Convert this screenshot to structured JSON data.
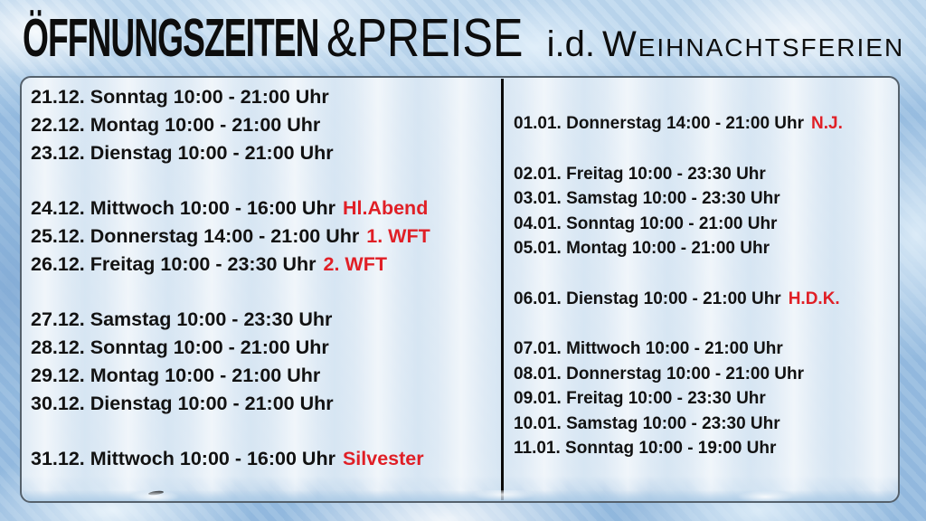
{
  "title": {
    "main_bold": "ÖFFNUNGSZEITEN",
    "main_light": "&PREISE",
    "infix": "i.d.",
    "suffix": "Weihnachtsferien"
  },
  "colors": {
    "highlight_red": "#e01f26",
    "text_black": "#121212"
  },
  "schedule": {
    "december": [
      {
        "text": "21.12. Sonntag 10:00 - 21:00 Uhr",
        "note": ""
      },
      {
        "text": "22.12. Montag 10:00 - 21:00 Uhr",
        "note": ""
      },
      {
        "text": "23.12. Dienstag 10:00 - 21:00 Uhr",
        "note": ""
      },
      {
        "text": "24.12. Mittwoch 10:00 - 16:00 Uhr",
        "note": "Hl.Abend"
      },
      {
        "text": "25.12. Donnerstag 14:00 - 21:00 Uhr",
        "note": "1. WFT"
      },
      {
        "text": "26.12. Freitag 10:00 - 23:30 Uhr",
        "note": "2. WFT"
      },
      {
        "text": "27.12. Samstag 10:00 - 23:30 Uhr",
        "note": ""
      },
      {
        "text": "28.12. Sonntag 10:00 - 21:00 Uhr",
        "note": ""
      },
      {
        "text": "29.12. Montag 10:00 - 21:00 Uhr",
        "note": ""
      },
      {
        "text": "30.12. Dienstag 10:00 - 21:00 Uhr",
        "note": ""
      },
      {
        "text": "31.12. Mittwoch 10:00 - 16:00 Uhr",
        "note": "Silvester"
      }
    ],
    "january": [
      {
        "text": "01.01. Donnerstag 14:00 - 21:00 Uhr",
        "note": "N.J."
      },
      {
        "text": "02.01. Freitag 10:00 - 23:30 Uhr",
        "note": ""
      },
      {
        "text": "03.01. Samstag 10:00 - 23:30 Uhr",
        "note": ""
      },
      {
        "text": "04.01. Sonntag 10:00 - 21:00 Uhr",
        "note": ""
      },
      {
        "text": "05.01. Montag 10:00 - 21:00 Uhr",
        "note": ""
      },
      {
        "text": "06.01. Dienstag 10:00 - 21:00 Uhr",
        "note": "H.D.K."
      },
      {
        "text": "07.01. Mittwoch 10:00 - 21:00 Uhr",
        "note": ""
      },
      {
        "text": "08.01. Donnerstag 10:00 - 21:00 Uhr",
        "note": ""
      },
      {
        "text": "09.01. Freitag 10:00 - 23:30 Uhr",
        "note": ""
      },
      {
        "text": "10.01. Samstag 10:00 - 23:30 Uhr",
        "note": ""
      },
      {
        "text": "11.01. Sonntag 10:00 - 19:00 Uhr",
        "note": ""
      }
    ]
  }
}
